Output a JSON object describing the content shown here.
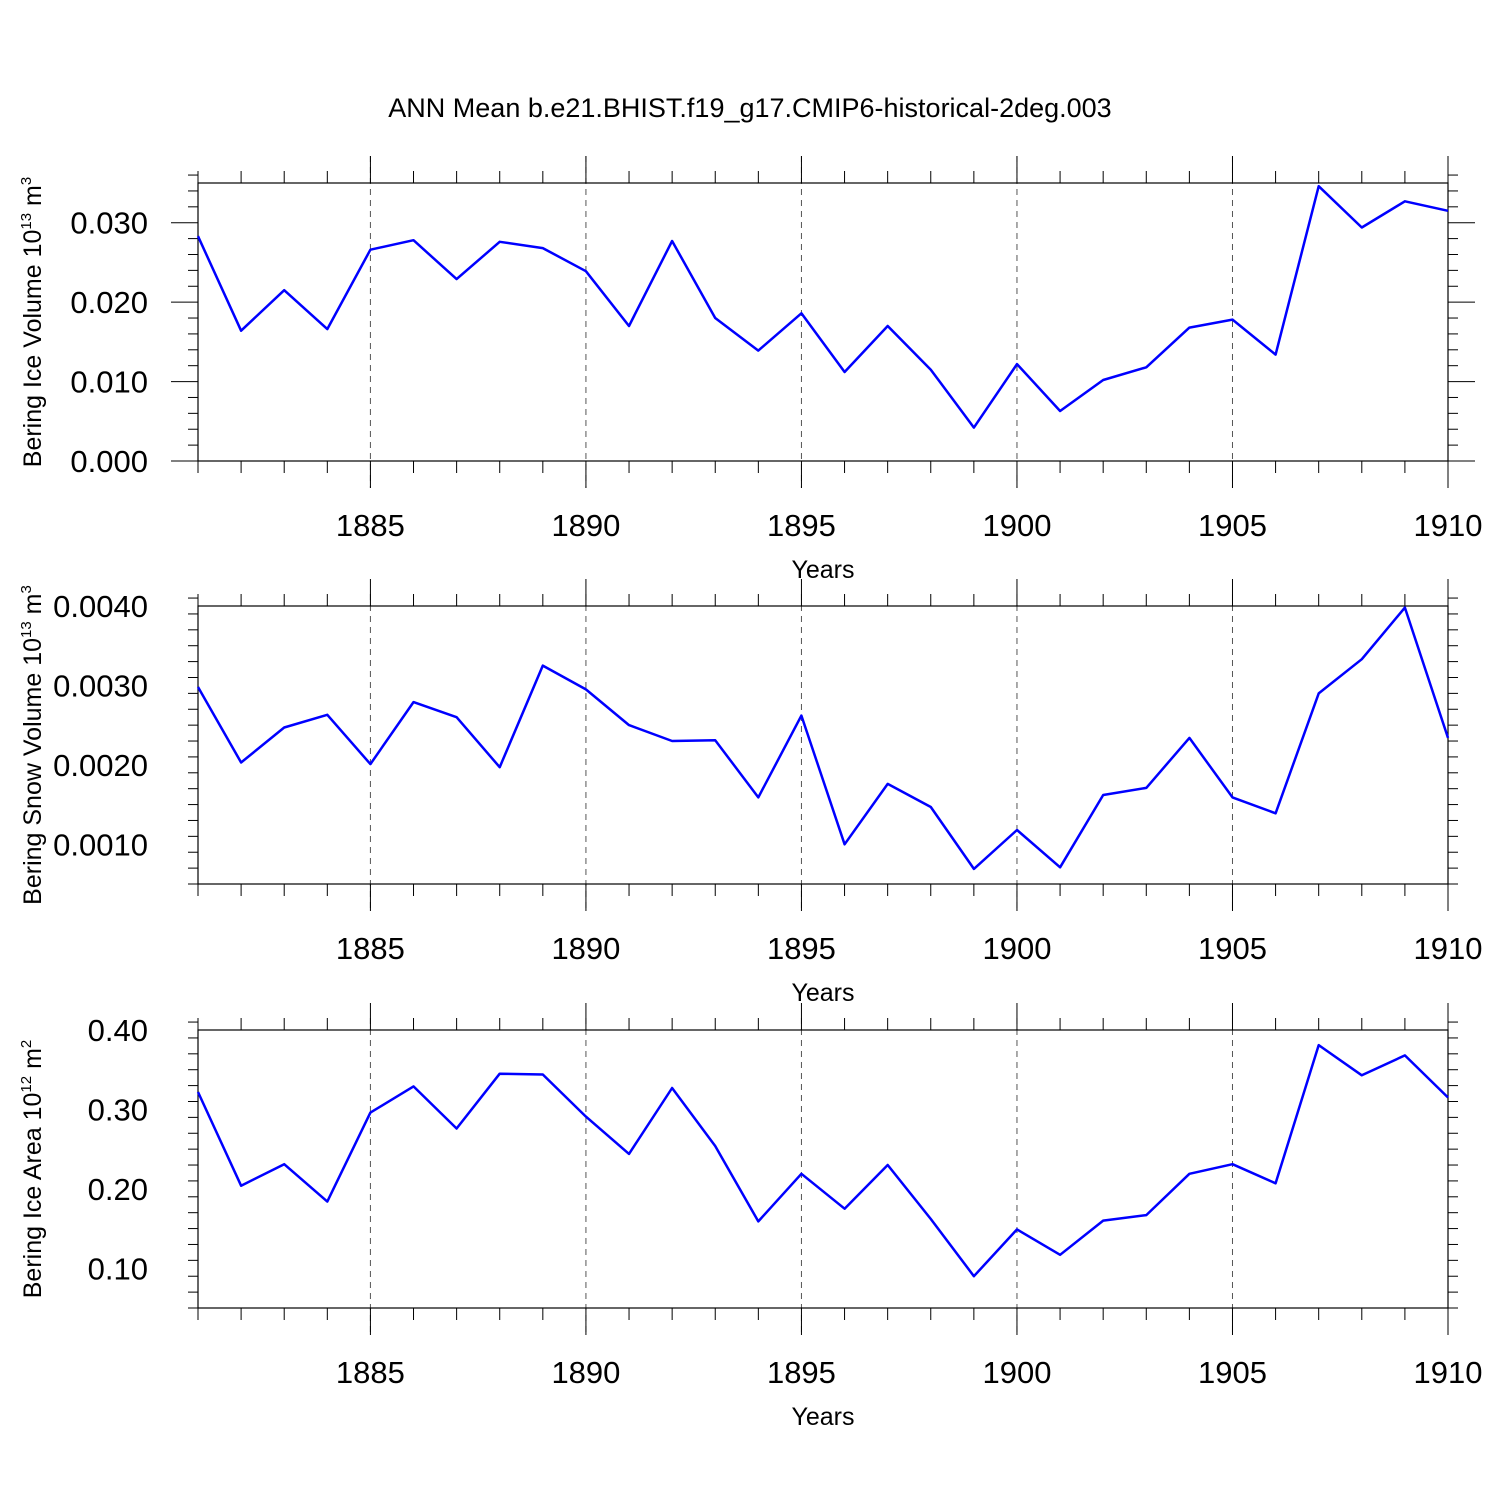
{
  "figure_title": "ANN Mean b.e21.BHIST.f19_g17.CMIP6-historical-2deg.003",
  "colors": {
    "series": "#0000ff",
    "axis": "#000000",
    "grid": "#555555"
  },
  "chart_data": [
    {
      "type": "line",
      "title": "ANN Mean b.e21.BHIST.f19_g17.CMIP6-historical-2deg.003",
      "ylabel": {
        "text": "Bering Ice Volume 10",
        "exp": "13",
        "unit": " m",
        "unit_exp": "3"
      },
      "xlabel": "Years",
      "xlim": [
        1881,
        1910
      ],
      "ylim": [
        0.0,
        0.035
      ],
      "x_ticks": [
        1885,
        1890,
        1895,
        1900,
        1905,
        1910
      ],
      "y_ticks": [
        0.0,
        0.01,
        0.02,
        0.03
      ],
      "y_tick_labels": [
        "0.000",
        "0.010",
        "0.020",
        "0.030"
      ],
      "y_minor_step": 0.002,
      "grid": "vertical dashed at major x ticks",
      "x": [
        1881,
        1882,
        1883,
        1884,
        1885,
        1886,
        1887,
        1888,
        1889,
        1890,
        1891,
        1892,
        1893,
        1894,
        1895,
        1896,
        1897,
        1898,
        1899,
        1900,
        1901,
        1902,
        1903,
        1904,
        1905,
        1906,
        1907,
        1908,
        1909,
        1910
      ],
      "values": [
        0.0283,
        0.0164,
        0.0215,
        0.0166,
        0.0266,
        0.0278,
        0.0229,
        0.0276,
        0.0268,
        0.0239,
        0.017,
        0.0277,
        0.018,
        0.0139,
        0.0186,
        0.0112,
        0.017,
        0.0115,
        0.0042,
        0.0122,
        0.0063,
        0.0102,
        0.0118,
        0.0168,
        0.0178,
        0.0134,
        0.0346,
        0.0294,
        0.0327,
        0.0315
      ]
    },
    {
      "type": "line",
      "ylabel": {
        "text": "Bering Snow Volume 10",
        "exp": "13",
        "unit": " m",
        "unit_exp": "3"
      },
      "xlabel": "Years",
      "xlim": [
        1881,
        1910
      ],
      "ylim": [
        0.0005,
        0.004
      ],
      "x_ticks": [
        1885,
        1890,
        1895,
        1900,
        1905,
        1910
      ],
      "y_ticks": [
        0.001,
        0.002,
        0.003,
        0.004
      ],
      "y_tick_labels": [
        "0.0010",
        "0.0020",
        "0.0030",
        "0.0040"
      ],
      "y_minor_step": 0.0002,
      "grid": "vertical dashed at major x ticks",
      "x": [
        1881,
        1882,
        1883,
        1884,
        1885,
        1886,
        1887,
        1888,
        1889,
        1890,
        1891,
        1892,
        1893,
        1894,
        1895,
        1896,
        1897,
        1898,
        1899,
        1900,
        1901,
        1902,
        1903,
        1904,
        1905,
        1906,
        1907,
        1908,
        1909,
        1910
      ],
      "values": [
        0.00298,
        0.00203,
        0.00247,
        0.00263,
        0.00201,
        0.00279,
        0.0026,
        0.00197,
        0.00325,
        0.00295,
        0.0025,
        0.0023,
        0.00231,
        0.00159,
        0.00262,
        0.001,
        0.00176,
        0.00147,
        0.00069,
        0.00118,
        0.00071,
        0.00162,
        0.00171,
        0.00234,
        0.00159,
        0.00139,
        0.0029,
        0.00333,
        0.00398,
        0.00234
      ]
    },
    {
      "type": "line",
      "ylabel": {
        "text": "Bering Ice Area 10",
        "exp": "12",
        "unit": " m",
        "unit_exp": "2"
      },
      "xlabel": "Years",
      "xlim": [
        1881,
        1910
      ],
      "ylim": [
        0.05,
        0.4
      ],
      "x_ticks": [
        1885,
        1890,
        1895,
        1900,
        1905,
        1910
      ],
      "y_ticks": [
        0.1,
        0.2,
        0.3,
        0.4
      ],
      "y_tick_labels": [
        "0.10",
        "0.20",
        "0.30",
        "0.40"
      ],
      "y_minor_step": 0.02,
      "grid": "vertical dashed at major x ticks",
      "x": [
        1881,
        1882,
        1883,
        1884,
        1885,
        1886,
        1887,
        1888,
        1889,
        1890,
        1891,
        1892,
        1893,
        1894,
        1895,
        1896,
        1897,
        1898,
        1899,
        1900,
        1901,
        1902,
        1903,
        1904,
        1905,
        1906,
        1907,
        1908,
        1909,
        1910
      ],
      "values": [
        0.322,
        0.204,
        0.231,
        0.184,
        0.296,
        0.329,
        0.276,
        0.345,
        0.344,
        0.291,
        0.244,
        0.327,
        0.254,
        0.159,
        0.219,
        0.175,
        0.23,
        0.162,
        0.09,
        0.149,
        0.117,
        0.16,
        0.167,
        0.219,
        0.231,
        0.207,
        0.381,
        0.343,
        0.368,
        0.315
      ]
    }
  ]
}
